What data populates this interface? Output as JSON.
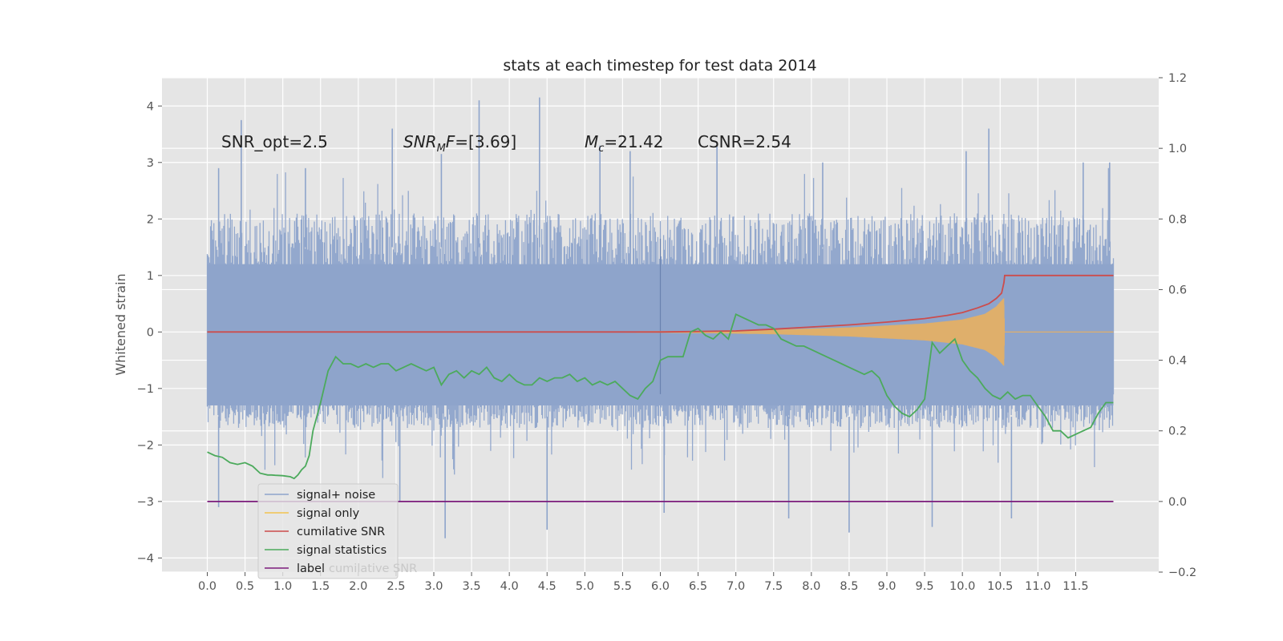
{
  "chart_data": {
    "type": "line",
    "title": "stats at each timestep for test data 2014",
    "ylabel": "Whitened strain",
    "xlabel": "",
    "xlim": [
      -0.6,
      12.6
    ],
    "ylim": [
      -4.25,
      4.5
    ],
    "ylim_right": [
      -0.2,
      1.2
    ],
    "grid": true,
    "x_ticks": [
      "0.0",
      "0.5",
      "1.0",
      "1.5",
      "2.0",
      "2.5",
      "3.0",
      "3.5",
      "4.0",
      "4.5",
      "5.0",
      "5.5",
      "6.0",
      "6.5",
      "7.0",
      "7.5",
      "8.0",
      "8.5",
      "9.0",
      "9.5",
      "10.0",
      "10.5",
      "11.0",
      "11.5"
    ],
    "y_ticks_left": [
      "−4",
      "−3",
      "−2",
      "−1",
      "0",
      "1",
      "2",
      "3",
      "4"
    ],
    "y_ticks_right": [
      "−0.2",
      "0.0",
      "0.2",
      "0.4",
      "0.6",
      "0.8",
      "1.0",
      "1.2"
    ],
    "annotations": [
      {
        "text": "SNR_opt=2.5"
      },
      {
        "text": "SNR",
        "sub": "M",
        "rest": "F=[3.69]"
      },
      {
        "text": "M",
        "sub": "c",
        "rest": "=21.42"
      },
      {
        "text": "CSNR=2.54"
      }
    ],
    "legend": {
      "placement": "lower-left",
      "entries": [
        {
          "label": "signal+ noise",
          "color": "#8ea4cb"
        },
        {
          "label": "signal only",
          "color": "#f2c44f"
        },
        {
          "label": "cumilative SNR",
          "color": "#cc4c4c"
        },
        {
          "label": "signal statistics",
          "color": "#4caa5c"
        },
        {
          "label": "label",
          "color": "#7b1b7b"
        }
      ],
      "ghost_text": "cumilative SNR"
    },
    "series": [
      {
        "name": "signal+ noise",
        "axis": "left",
        "color": "#8ea4cb",
        "x_range": [
          0.0,
          12.0
        ],
        "typical_min": -1.7,
        "typical_max": 2.1,
        "spikes": [
          [
            0.15,
            2.9
          ],
          [
            0.45,
            3.75
          ],
          [
            1.3,
            2.9
          ],
          [
            2.45,
            3.6
          ],
          [
            3.1,
            3.15
          ],
          [
            3.6,
            4.1
          ],
          [
            4.4,
            4.15
          ],
          [
            5.2,
            3.3
          ],
          [
            5.6,
            3.2
          ],
          [
            6.75,
            3.35
          ],
          [
            8.15,
            3.0
          ],
          [
            10.05,
            3.2
          ],
          [
            10.35,
            3.6
          ],
          [
            11.6,
            3.0
          ],
          [
            11.95,
            3.0
          ],
          [
            3.15,
            -3.65
          ],
          [
            4.5,
            -3.5
          ],
          [
            6.05,
            -3.2
          ],
          [
            7.7,
            -3.3
          ],
          [
            8.5,
            -3.55
          ],
          [
            9.6,
            -3.45
          ],
          [
            10.65,
            -3.3
          ],
          [
            0.15,
            -3.1
          ],
          [
            2.55,
            -3.0
          ]
        ],
        "step_point": [
          6.0,
          1.65
        ]
      },
      {
        "name": "signal only",
        "axis": "left",
        "color": "#e8b060",
        "envelope": [
          [
            5.5,
            0.01
          ],
          [
            6.5,
            0.02
          ],
          [
            7.5,
            0.04
          ],
          [
            8.5,
            0.08
          ],
          [
            9.5,
            0.15
          ],
          [
            10.0,
            0.22
          ],
          [
            10.3,
            0.32
          ],
          [
            10.45,
            0.45
          ],
          [
            10.55,
            0.6
          ],
          [
            10.56,
            0.0
          ],
          [
            12.0,
            0.0
          ]
        ]
      },
      {
        "name": "cumilative SNR",
        "axis": "right",
        "color": "#cc4c4c",
        "x": [
          0.0,
          6.0,
          7.0,
          7.5,
          8.0,
          8.5,
          9.0,
          9.5,
          9.8,
          10.0,
          10.2,
          10.35,
          10.45,
          10.52,
          10.55,
          10.56,
          12.0
        ],
        "values": [
          0.48,
          0.48,
          0.483,
          0.488,
          0.494,
          0.5,
          0.508,
          0.518,
          0.527,
          0.535,
          0.548,
          0.56,
          0.575,
          0.59,
          0.62,
          0.64,
          0.64
        ]
      },
      {
        "name": "signal statistics",
        "axis": "right",
        "color": "#4caa5c",
        "x": [
          0.0,
          0.1,
          0.2,
          0.3,
          0.4,
          0.5,
          0.6,
          0.7,
          0.8,
          0.85,
          0.9,
          1.0,
          1.1,
          1.15,
          1.2,
          1.25,
          1.3,
          1.35,
          1.4,
          1.5,
          1.6,
          1.7,
          1.8,
          1.9,
          2.0,
          2.1,
          2.2,
          2.3,
          2.4,
          2.5,
          2.6,
          2.7,
          2.8,
          2.9,
          3.0,
          3.1,
          3.2,
          3.3,
          3.4,
          3.5,
          3.6,
          3.7,
          3.8,
          3.9,
          4.0,
          4.1,
          4.2,
          4.3,
          4.4,
          4.5,
          4.6,
          4.7,
          4.8,
          4.9,
          5.0,
          5.1,
          5.2,
          5.3,
          5.4,
          5.5,
          5.6,
          5.7,
          5.8,
          5.9,
          6.0,
          6.1,
          6.2,
          6.3,
          6.4,
          6.5,
          6.6,
          6.7,
          6.8,
          6.9,
          7.0,
          7.1,
          7.2,
          7.3,
          7.4,
          7.5,
          7.6,
          7.7,
          7.8,
          7.9,
          8.0,
          8.1,
          8.2,
          8.3,
          8.4,
          8.5,
          8.6,
          8.7,
          8.8,
          8.9,
          9.0,
          9.1,
          9.2,
          9.3,
          9.4,
          9.5,
          9.6,
          9.7,
          9.8,
          9.9,
          10.0,
          10.1,
          10.2,
          10.3,
          10.4,
          10.5,
          10.6,
          10.7,
          10.8,
          10.9,
          11.0,
          11.1,
          11.2,
          11.3,
          11.4,
          11.5,
          11.6,
          11.7,
          11.8,
          11.9,
          12.0
        ],
        "values": [
          0.14,
          0.13,
          0.125,
          0.11,
          0.105,
          0.11,
          0.1,
          0.08,
          0.075,
          0.075,
          0.074,
          0.073,
          0.07,
          0.065,
          0.075,
          0.09,
          0.1,
          0.13,
          0.2,
          0.28,
          0.37,
          0.41,
          0.39,
          0.39,
          0.38,
          0.39,
          0.38,
          0.39,
          0.39,
          0.37,
          0.38,
          0.39,
          0.38,
          0.37,
          0.38,
          0.33,
          0.36,
          0.37,
          0.35,
          0.37,
          0.36,
          0.38,
          0.35,
          0.34,
          0.36,
          0.34,
          0.33,
          0.33,
          0.35,
          0.34,
          0.35,
          0.35,
          0.36,
          0.34,
          0.35,
          0.33,
          0.34,
          0.33,
          0.34,
          0.32,
          0.3,
          0.29,
          0.32,
          0.34,
          0.4,
          0.41,
          0.41,
          0.41,
          0.48,
          0.49,
          0.47,
          0.46,
          0.48,
          0.46,
          0.53,
          0.52,
          0.51,
          0.5,
          0.5,
          0.49,
          0.46,
          0.45,
          0.44,
          0.44,
          0.43,
          0.42,
          0.41,
          0.4,
          0.39,
          0.38,
          0.37,
          0.36,
          0.37,
          0.35,
          0.3,
          0.27,
          0.25,
          0.24,
          0.26,
          0.29,
          0.45,
          0.42,
          0.44,
          0.46,
          0.4,
          0.37,
          0.35,
          0.32,
          0.3,
          0.29,
          0.31,
          0.29,
          0.3,
          0.3,
          0.27,
          0.24,
          0.2,
          0.2,
          0.18,
          0.19,
          0.2,
          0.21,
          0.25,
          0.28,
          0.28
        ]
      },
      {
        "name": "label",
        "axis": "right",
        "color": "#7b1b7b",
        "x": [
          0.0,
          12.0
        ],
        "values": [
          0.0,
          0.0
        ]
      }
    ]
  }
}
